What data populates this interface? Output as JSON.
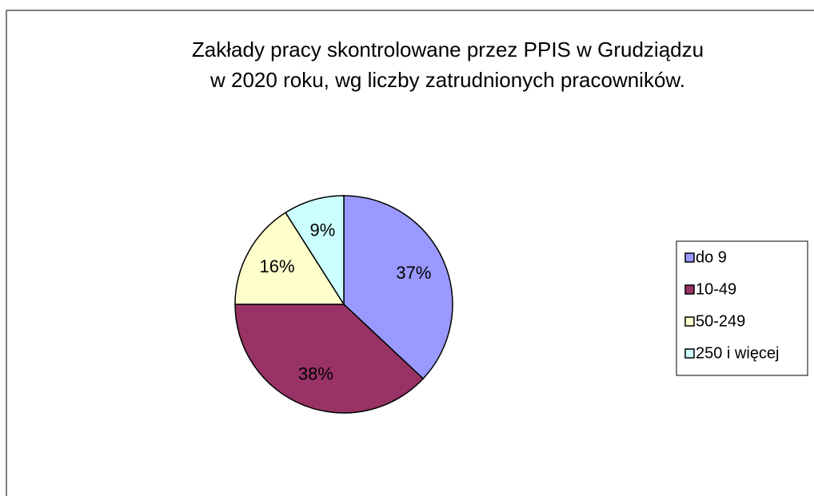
{
  "chart_data": {
    "type": "pie",
    "title": [
      "Zakłady pracy skontrolowane przez PPIS w Grudziądzu",
      "w 2020 roku, wg liczby zatrudnionych pracowników."
    ],
    "categories": [
      "do 9",
      "10-49",
      "50-249",
      "250 i więcej"
    ],
    "values": [
      37,
      38,
      16,
      9
    ],
    "value_labels": [
      "37%",
      "38%",
      "16%",
      "9%"
    ],
    "colors": [
      "#9999ff",
      "#993366",
      "#ffffcc",
      "#ccffff"
    ],
    "legend": "right"
  }
}
